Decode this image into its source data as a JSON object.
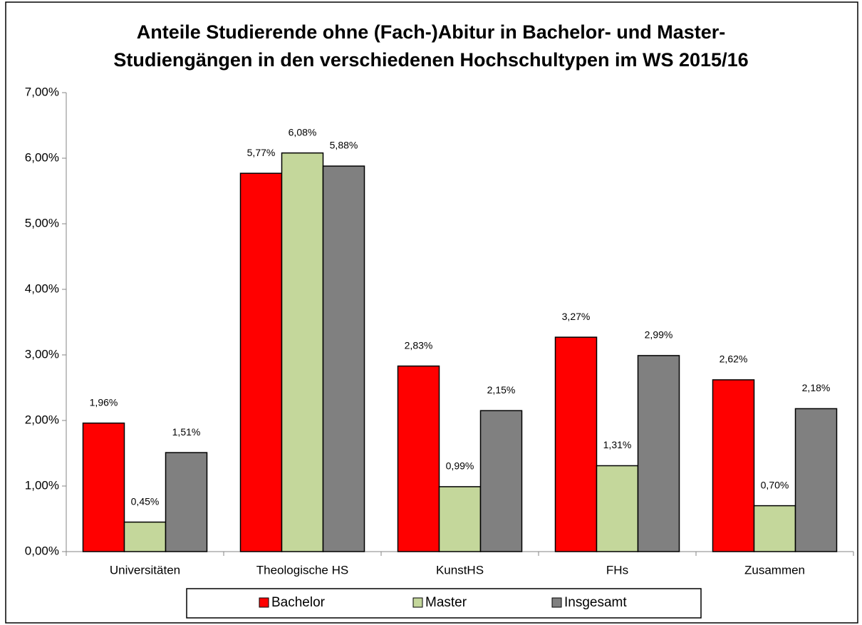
{
  "chart_data": {
    "type": "bar",
    "title": [
      "Anteile Studierende ohne (Fach-)Abitur in Bachelor- und Master-",
      "Studiengängen in den verschiedenen Hochschultypen im WS 2015/16"
    ],
    "categories": [
      "Universitäten",
      "Theologische HS",
      "KunstHS",
      "FHs",
      "Zusammen"
    ],
    "series": [
      {
        "name": "Bachelor",
        "color": "#ff0000",
        "values": [
          1.96,
          5.77,
          2.83,
          3.27,
          2.62
        ],
        "value_labels": [
          "1,96%",
          "5,77%",
          "2,83%",
          "3,27%",
          "2,62%"
        ]
      },
      {
        "name": "Master",
        "color": "#c4d79b",
        "values": [
          0.45,
          6.08,
          0.99,
          1.31,
          0.7
        ],
        "value_labels": [
          "0,45%",
          "6,08%",
          "0,99%",
          "1,31%",
          "0,70%"
        ]
      },
      {
        "name": "Insgesamt",
        "color": "#808080",
        "values": [
          1.51,
          5.88,
          2.15,
          2.99,
          2.18
        ],
        "value_labels": [
          "1,51%",
          "5,88%",
          "2,15%",
          "2,99%",
          "2,18%"
        ]
      }
    ],
    "ylim": [
      0,
      7
    ],
    "yticks": [
      {
        "value": 0,
        "label": "0,00%"
      },
      {
        "value": 1,
        "label": "1,00%"
      },
      {
        "value": 2,
        "label": "2,00%"
      },
      {
        "value": 3,
        "label": "3,00%"
      },
      {
        "value": 4,
        "label": "4,00%"
      },
      {
        "value": 5,
        "label": "5,00%"
      },
      {
        "value": 6,
        "label": "6,00%"
      },
      {
        "value": 7,
        "label": "7,00%"
      }
    ],
    "grid": false,
    "legend": "bottom"
  }
}
